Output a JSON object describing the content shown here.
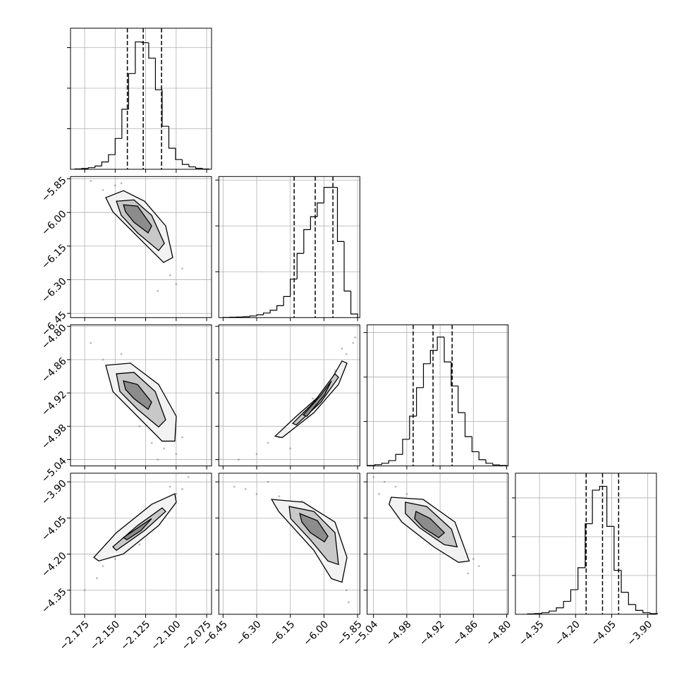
{
  "chart_data": {
    "type": "corner",
    "line_color": "#000000",
    "point_color": "#777777",
    "contour_colors": [
      "#f2f2f2",
      "#c8c8c8",
      "#8c8c8c"
    ],
    "grid": true,
    "axes": [
      {
        "lim": [
          -2.1866,
          -2.071
        ],
        "ticks": [
          {
            "value": -2.175,
            "label": "−2.175"
          },
          {
            "value": -2.15,
            "label": "−2.150"
          },
          {
            "value": -2.125,
            "label": "−2.125"
          },
          {
            "value": -2.1,
            "label": "−2.100"
          },
          {
            "value": -2.075,
            "label": "−2.075"
          }
        ]
      },
      {
        "lim": [
          -6.469,
          -5.84
        ],
        "ticks": [
          {
            "value": -6.45,
            "label": "−6.45"
          },
          {
            "value": -6.3,
            "label": "−6.30"
          },
          {
            "value": -6.15,
            "label": "−6.15"
          },
          {
            "value": -6.0,
            "label": "−6.00"
          },
          {
            "value": -5.85,
            "label": "−5.85"
          }
        ]
      },
      {
        "lim": [
          -5.0515,
          -4.7974
        ],
        "ticks": [
          {
            "value": -5.04,
            "label": "−5.04"
          },
          {
            "value": -4.98,
            "label": "−4.98"
          },
          {
            "value": -4.92,
            "label": "−4.92"
          },
          {
            "value": -4.86,
            "label": "−4.86"
          },
          {
            "value": -4.8,
            "label": "−4.80"
          }
        ]
      },
      {
        "lim": [
          -4.45,
          -3.864
        ],
        "ticks": [
          {
            "value": -4.35,
            "label": "−4.35"
          },
          {
            "value": -4.2,
            "label": "−4.20"
          },
          {
            "value": -4.05,
            "label": "−4.05"
          },
          {
            "value": -3.9,
            "label": "−3.90"
          }
        ]
      }
    ],
    "histograms": [
      {
        "bins": [
          -2.183,
          -2.1775,
          -2.172,
          -2.1665,
          -2.161,
          -2.1555,
          -2.15,
          -2.1445,
          -2.139,
          -2.1335,
          -2.128,
          -2.1225,
          -2.117,
          -2.1115,
          -2.106,
          -2.1005,
          -2.095,
          -2.0895,
          -2.084,
          -2.0785,
          -2.073
        ],
        "counts": [
          5,
          10,
          20,
          40,
          90,
          180,
          380,
          740,
          1180,
          1570,
          1560,
          1370,
          980,
          530,
          260,
          120,
          60,
          30,
          12,
          4
        ],
        "ylim": [
          0,
          1739
        ],
        "yticks": [
          500,
          1000,
          1500
        ],
        "quantiles": [
          -2.14,
          -2.127,
          -2.112
        ]
      },
      {
        "bins": [
          -6.45,
          -6.42,
          -6.39,
          -6.36,
          -6.33,
          -6.3,
          -6.27,
          -6.24,
          -6.21,
          -6.18,
          -6.15,
          -6.12,
          -6.09,
          -6.06,
          -6.03,
          -6.0,
          -5.97,
          -5.94,
          -5.91,
          -5.88,
          -5.85
        ],
        "counts": [
          2,
          4,
          6,
          10,
          18,
          30,
          50,
          80,
          130,
          230,
          420,
          700,
          960,
          1100,
          1250,
          1420,
          1420,
          830,
          290,
          40
        ],
        "ylim": [
          0,
          1538
        ],
        "yticks": [
          500,
          1000,
          1500
        ],
        "quantiles": [
          -6.133,
          -6.039,
          -5.96
        ]
      },
      {
        "bins": [
          -5.05,
          -5.0375,
          -5.025,
          -5.0125,
          -5.0,
          -4.9875,
          -4.975,
          -4.9625,
          -4.95,
          -4.9375,
          -4.925,
          -4.9125,
          -4.9,
          -4.8875,
          -4.875,
          -4.8625,
          -4.85,
          -4.8375,
          -4.825,
          -4.8125,
          -4.8
        ],
        "counts": [
          5,
          15,
          30,
          60,
          130,
          300,
          560,
          880,
          1150,
          1300,
          1450,
          1170,
          900,
          600,
          330,
          160,
          70,
          30,
          12,
          5
        ],
        "ylim": [
          0,
          1587
        ],
        "yticks": [
          500,
          1000,
          1500
        ],
        "quantiles": [
          -4.9685,
          -4.9327,
          -4.8983
        ]
      },
      {
        "bins": [
          -4.4,
          -4.37,
          -4.34,
          -4.31,
          -4.28,
          -4.25,
          -4.22,
          -4.19,
          -4.16,
          -4.13,
          -4.1,
          -4.07,
          -4.04,
          -4.01,
          -3.98,
          -3.95,
          -3.92,
          -3.89,
          -3.86
        ],
        "counts": [
          3,
          6,
          12,
          25,
          50,
          100,
          190,
          360,
          700,
          960,
          990,
          680,
          340,
          170,
          75,
          30,
          12,
          5
        ],
        "ylim": [
          0,
          1091
        ],
        "yticks": [
          300,
          600,
          900
        ],
        "quantiles": [
          -4.156,
          -4.088,
          -4.021
        ]
      }
    ],
    "pairs": [
      {
        "points": {
          "x": [
            -2.17,
            -2.16,
            -2.15,
            -2.14,
            -2.13,
            -2.12,
            -2.11,
            -2.105,
            -2.1,
            -2.095,
            -2.115,
            -2.145
          ],
          "y": [
            -5.86,
            -5.9,
            -5.88,
            -5.95,
            -6.05,
            -6.12,
            -6.2,
            -6.28,
            -6.32,
            -6.25,
            -6.35,
            -5.87
          ]
        },
        "contours": [
          {
            "x": [
              -2.1577,
              -2.1432,
              -2.1259,
              -2.1086,
              -2.1028,
              -2.1103,
              -2.1288,
              -2.1519
            ],
            "y": [
              -5.934,
              -5.903,
              -5.95,
              -6.06,
              -6.201,
              -6.223,
              -6.123,
              -5.997
            ]
          },
          {
            "x": [
              -2.149,
              -2.1346,
              -2.1201,
              -2.1097,
              -2.1144,
              -2.1317,
              -2.145
            ],
            "y": [
              -5.95,
              -5.944,
              -6.013,
              -6.138,
              -6.17,
              -6.091,
              -6.013
            ]
          },
          {
            "x": [
              -2.1432,
              -2.1317,
              -2.1201,
              -2.123,
              -2.1346,
              -2.1415
            ],
            "y": [
              -5.966,
              -5.972,
              -6.06,
              -6.091,
              -6.044,
              -5.997
            ]
          }
        ]
      },
      {
        "points": {
          "x": [
            -2.17,
            -2.16,
            -2.15,
            -2.14,
            -2.13,
            -2.12,
            -2.11,
            -2.1,
            -2.095,
            -2.105,
            -2.145,
            -2.115
          ],
          "y": [
            -4.83,
            -4.86,
            -4.88,
            -4.92,
            -4.98,
            -5.01,
            -5.02,
            -5.03,
            -5.0,
            -4.96,
            -4.85,
            -5.04
          ]
        },
        "contours": [
          {
            "x": [
              -2.1577,
              -2.1375,
              -2.1144,
              -2.0999,
              -2.1011,
              -2.1115,
              -2.1317,
              -2.1519
            ],
            "y": [
              -4.8702,
              -4.8664,
              -4.9047,
              -4.9621,
              -5.0068,
              -5.0068,
              -4.9621,
              -4.9174
            ]
          },
          {
            "x": [
              -2.149,
              -2.1346,
              -2.1172,
              -2.1086,
              -2.1144,
              -2.1317,
              -2.1461
            ],
            "y": [
              -4.8855,
              -4.883,
              -4.9174,
              -4.9685,
              -4.9813,
              -4.9494,
              -4.9174
            ]
          },
          {
            "x": [
              -2.1432,
              -2.1317,
              -2.1201,
              -2.123,
              -2.1346,
              -2.1415
            ],
            "y": [
              -4.8983,
              -4.9047,
              -4.9366,
              -4.9494,
              -4.9302,
              -4.9136
            ]
          }
        ]
      },
      {
        "points": {
          "x": [
            -6.38,
            -6.3,
            -6.25,
            -6.2,
            -6.1,
            -6.05,
            -5.95,
            -5.9,
            -5.87,
            -5.86,
            -6.15,
            -5.92
          ],
          "y": [
            -5.04,
            -5.03,
            -5.01,
            -5.0,
            -4.97,
            -4.93,
            -4.88,
            -4.85,
            -4.83,
            -4.82,
            -5.02,
            -4.84
          ]
        },
        "contours": [
          {
            "x": [
              -6.2178,
              -6.1236,
              -5.998,
              -5.9195,
              -5.8975,
              -5.9352,
              -6.0451,
              -6.1864
            ],
            "y": [
              -4.9979,
              -4.9621,
              -4.9174,
              -4.8625,
              -4.8664,
              -4.9047,
              -4.9557,
              -5.0004
            ]
          },
          {
            "x": [
              -6.1393,
              -6.0451,
              -5.9509,
              -5.9352,
              -6.0137,
              -6.1236
            ],
            "y": [
              -4.9749,
              -4.9366,
              -4.8855,
              -4.8919,
              -4.9366,
              -4.9775
            ]
          },
          {
            "x": [
              -6.0922,
              -6.0137,
              -5.9666,
              -5.998,
              -6.0765
            ],
            "y": [
              -4.9596,
              -4.9238,
              -4.8983,
              -4.9238,
              -4.9621
            ]
          }
        ]
      },
      {
        "points": {
          "x": [
            -2.175,
            -2.165,
            -2.16,
            -2.15,
            -2.14,
            -2.12,
            -2.11,
            -2.1,
            -2.095,
            -2.09,
            -2.13,
            -2.105
          ],
          "y": [
            -4.35,
            -4.3,
            -4.25,
            -4.22,
            -4.18,
            -4.1,
            -3.98,
            -3.95,
            -3.93,
            -3.88,
            -4.16,
            -3.92
          ]
        },
        "contours": [
          {
            "x": [
              -2.1675,
              -2.149,
              -2.1201,
              -2.1011,
              -2.0999,
              -2.1144,
              -2.1432,
              -2.1635
            ],
            "y": [
              -4.2139,
              -4.111,
              -3.9934,
              -3.9493,
              -3.9845,
              -4.0816,
              -4.1992,
              -4.2286
            ]
          },
          {
            "x": [
              -2.1519,
              -2.1317,
              -2.1115,
              -2.1086,
              -2.1259,
              -2.149
            ],
            "y": [
              -4.1698,
              -4.0816,
              -4.0081,
              -4.0228,
              -4.1021,
              -4.1845
            ]
          },
          {
            "x": [
              -2.1432,
              -2.1288,
              -2.1201,
              -2.1288,
              -2.1404
            ],
            "y": [
              -4.1315,
              -4.0816,
              -4.0522,
              -4.1021,
              -4.1404
            ]
          }
        ]
      },
      {
        "points": {
          "x": [
            -6.4,
            -6.35,
            -6.3,
            -6.2,
            -6.1,
            -6.0,
            -5.95,
            -5.92,
            -5.9,
            -5.89,
            -6.25,
            -5.96
          ],
          "y": [
            -3.92,
            -3.93,
            -3.95,
            -3.96,
            -3.98,
            -4.05,
            -4.15,
            -4.25,
            -4.35,
            -4.4,
            -3.9,
            -4.3
          ]
        },
        "contours": [
          {
            "x": [
              -6.2335,
              -6.0922,
              -5.9509,
              -5.8975,
              -5.9195,
              -5.9666,
              -6.0451,
              -6.2021
            ],
            "y": [
              -3.9728,
              -3.9845,
              -4.0669,
              -4.2139,
              -4.3168,
              -4.3021,
              -4.1845,
              -4.0228
            ]
          },
          {
            "x": [
              -6.155,
              -6.0451,
              -5.9509,
              -5.9352,
              -5.9823,
              -6.0608,
              -6.1487
            ],
            "y": [
              -4.0022,
              -4.0228,
              -4.111,
              -4.2433,
              -4.2286,
              -4.1404,
              -4.0522
            ]
          },
          {
            "x": [
              -6.1079,
              -6.0294,
              -5.9823,
              -5.998,
              -6.0608,
              -6.0985
            ],
            "y": [
              -4.0316,
              -4.061,
              -4.1257,
              -4.1492,
              -4.111,
              -4.0669
            ]
          }
        ]
      },
      {
        "points": {
          "x": [
            -5.04,
            -5.02,
            -5.0,
            -4.98,
            -4.95,
            -4.92,
            -4.9,
            -4.88,
            -4.86,
            -4.85,
            -5.03,
            -4.87
          ],
          "y": [
            -3.88,
            -3.9,
            -3.92,
            -3.95,
            -4.0,
            -4.08,
            -4.15,
            -4.2,
            -4.22,
            -4.25,
            -3.95,
            -4.28
          ]
        },
        "contours": [
          {
            "x": [
              -5.0081,
              -4.9506,
              -4.8932,
              -4.8676,
              -4.8868,
              -4.9315,
              -4.9889,
              -5.0119
            ],
            "y": [
              -3.964,
              -3.9728,
              -4.0669,
              -4.2286,
              -4.2344,
              -4.1698,
              -4.0669,
              -3.9934
            ]
          },
          {
            "x": [
              -4.9825,
              -4.9442,
              -4.8995,
              -4.8893,
              -4.9123,
              -4.957,
              -4.9825
            ],
            "y": [
              -3.9845,
              -4.0022,
              -4.0963,
              -4.1698,
              -4.161,
              -4.0904,
              -4.0316
            ]
          },
          {
            "x": [
              -4.9634,
              -4.9378,
              -4.9123,
              -4.9225,
              -4.9506,
              -4.966
            ],
            "y": [
              -4.0228,
              -4.0522,
              -4.111,
              -4.1315,
              -4.0904,
              -4.0522
            ]
          }
        ]
      }
    ]
  }
}
